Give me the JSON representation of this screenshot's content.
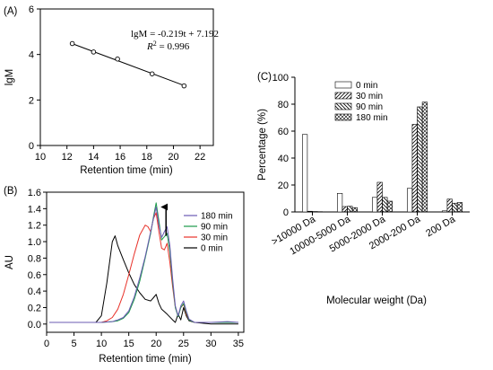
{
  "chart_data": [
    {
      "id": "A",
      "type": "scatter",
      "panel_label": "(A)",
      "title": "",
      "xlabel": "Retention time (min)",
      "ylabel": "lgM",
      "xlim": [
        10,
        23
      ],
      "ylim": [
        0,
        6
      ],
      "xticks": [
        10,
        12,
        14,
        16,
        18,
        20,
        22
      ],
      "yticks": [
        0,
        2,
        4,
        6
      ],
      "points": [
        {
          "x": 12.4,
          "y": 4.48
        },
        {
          "x": 14.0,
          "y": 4.11
        },
        {
          "x": 15.8,
          "y": 3.8
        },
        {
          "x": 18.4,
          "y": 3.15
        },
        {
          "x": 20.8,
          "y": 2.62
        }
      ],
      "fit": {
        "slope": -0.219,
        "intercept": 7.192,
        "x": [
          12.4,
          20.8
        ]
      },
      "equation": "lgM = -0.219t + 7.192",
      "r2_label": "R",
      "r2_sup": "2",
      "r2_value": " = 0.996",
      "grid": false
    },
    {
      "id": "B",
      "type": "line",
      "panel_label": "(B)",
      "title": "",
      "xlabel": "Retention time (min)",
      "ylabel": "AU",
      "xlim": [
        0,
        36
      ],
      "ylim": [
        -0.1,
        1.6
      ],
      "xticks": [
        0,
        5,
        10,
        15,
        20,
        25,
        30,
        35
      ],
      "yticks": [
        0.0,
        0.2,
        0.4,
        0.6,
        0.8,
        1.0,
        1.2,
        1.4,
        1.6
      ],
      "legend_position": "right",
      "series": [
        {
          "name": "180 min",
          "color": "#6b5bb3",
          "x": [
            0.5,
            10,
            12,
            13,
            14,
            15,
            16,
            17,
            18,
            19,
            19.5,
            20,
            20.5,
            21,
            21.5,
            22,
            22.5,
            23,
            23.5,
            24,
            24.5,
            25,
            25.5,
            26,
            27,
            30,
            33,
            35
          ],
          "y": [
            0.02,
            0.02,
            0.03,
            0.05,
            0.08,
            0.16,
            0.33,
            0.56,
            0.82,
            1.12,
            1.28,
            1.42,
            1.2,
            1.05,
            1.12,
            1.18,
            0.95,
            0.55,
            0.22,
            0.1,
            0.22,
            0.28,
            0.16,
            0.06,
            0.02,
            0.02,
            0.03,
            0.02
          ]
        },
        {
          "name": "90 min",
          "color": "#1a9a4a",
          "x": [
            0.5,
            10,
            12,
            13,
            14,
            15,
            16,
            17,
            18,
            19,
            19.5,
            20,
            20.5,
            21,
            21.5,
            22,
            22.5,
            23,
            23.5,
            24,
            24.5,
            25,
            25.5,
            26,
            27,
            30,
            35
          ],
          "y": [
            0.02,
            0.02,
            0.03,
            0.04,
            0.07,
            0.14,
            0.3,
            0.52,
            0.8,
            1.1,
            1.3,
            1.47,
            1.25,
            1.02,
            1.06,
            1.1,
            0.88,
            0.5,
            0.2,
            0.09,
            0.2,
            0.25,
            0.14,
            0.05,
            0.02,
            0.02,
            0.02
          ]
        },
        {
          "name": "30 min",
          "color": "#e8322a",
          "x": [
            0.5,
            10,
            11,
            12,
            13,
            14,
            15,
            16,
            17,
            18,
            18.5,
            19,
            19.5,
            20,
            20.5,
            21,
            21.5,
            22,
            22.5,
            23,
            23.5,
            24,
            24.5,
            25,
            25.5,
            26,
            27,
            30,
            35
          ],
          "y": [
            0.02,
            0.02,
            0.04,
            0.08,
            0.18,
            0.36,
            0.6,
            0.85,
            1.08,
            1.2,
            1.18,
            1.12,
            1.28,
            1.35,
            1.12,
            0.92,
            0.9,
            0.98,
            0.75,
            0.45,
            0.2,
            0.1,
            0.2,
            0.24,
            0.12,
            0.05,
            0.02,
            0.02,
            0.02
          ]
        },
        {
          "name": "0 min",
          "color": "#000000",
          "x": [
            0.5,
            9,
            10,
            11,
            12,
            12.5,
            13,
            14,
            15,
            16,
            17,
            18,
            19,
            19.5,
            20,
            20.5,
            21,
            22,
            23,
            23.5,
            24,
            24.5,
            25,
            25.5,
            26,
            27,
            30,
            35
          ],
          "y": [
            0.02,
            0.02,
            0.1,
            0.5,
            1.0,
            1.07,
            0.95,
            0.78,
            0.62,
            0.48,
            0.38,
            0.3,
            0.28,
            0.32,
            0.36,
            0.25,
            0.18,
            0.12,
            0.05,
            0.02,
            0.12,
            0.05,
            0.2,
            0.1,
            0.04,
            0.02,
            0.0,
            0.0
          ]
        }
      ],
      "arrow": {
        "x": 21.8,
        "y_from": 1.07,
        "y_to": 1.42
      },
      "grid": false
    },
    {
      "id": "C",
      "type": "bar",
      "panel_label": "(C)",
      "title": "",
      "xlabel": "Molecular weight (Da)",
      "ylabel": "Percentage (%)",
      "ylim": [
        0,
        100
      ],
      "yticks": [
        0,
        20,
        40,
        60,
        80,
        100
      ],
      "legend_position": "top-left",
      "categories": [
        ">10000 Da",
        "10000-5000 Da",
        "5000-2000 Da",
        "2000-200 Da",
        "200 Da"
      ],
      "series": [
        {
          "name": "0 min",
          "pattern": "none",
          "values": [
            57.5,
            13.8,
            10.8,
            17.5,
            0.8
          ]
        },
        {
          "name": "30 min",
          "pattern": "diag-right",
          "values": [
            0.5,
            4.0,
            22.0,
            65.0,
            9.5
          ]
        },
        {
          "name": "90 min",
          "pattern": "diag-left",
          "values": [
            0.3,
            4.2,
            10.8,
            78.0,
            6.5
          ]
        },
        {
          "name": "180 min",
          "pattern": "cross",
          "values": [
            0.2,
            3.2,
            8.0,
            81.5,
            7.0
          ]
        }
      ],
      "grid": false
    }
  ]
}
